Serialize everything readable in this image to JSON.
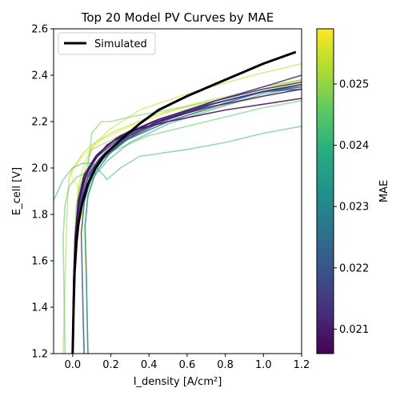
{
  "chart_data": {
    "type": "line",
    "title": "Top 20 Model PV Curves by MAE",
    "xlabel": "I_density [A/cm²]",
    "ylabel": "E_cell [V]",
    "xlim": [
      -0.1,
      1.2
    ],
    "ylim": [
      1.2,
      2.6
    ],
    "x_ticks": [
      "0.0",
      "0.2",
      "0.4",
      "0.6",
      "0.8",
      "1.0",
      "1.2"
    ],
    "y_ticks": [
      "1.2",
      "1.4",
      "1.6",
      "1.8",
      "2.0",
      "2.2",
      "2.4",
      "2.6"
    ],
    "grid": false,
    "legend_location": "upper left",
    "legend": [
      "Simulated"
    ],
    "colorbar": {
      "label": "MAE",
      "colormap": "viridis",
      "range": [
        0.0206,
        0.0259
      ],
      "ticks": [
        "0.021",
        "0.022",
        "0.023",
        "0.024",
        "0.025"
      ]
    },
    "simulated": {
      "name": "Simulated",
      "color": "#000000",
      "x": [
        0.0,
        0.005,
        0.01,
        0.02,
        0.03,
        0.05,
        0.08,
        0.12,
        0.17,
        0.25,
        0.35,
        0.45,
        0.6,
        0.8,
        1.0,
        1.17
      ],
      "y": [
        1.2,
        1.4,
        1.55,
        1.68,
        1.76,
        1.85,
        1.93,
        2.0,
        2.06,
        2.12,
        2.19,
        2.25,
        2.31,
        2.38,
        2.45,
        2.5
      ]
    },
    "model_curves": [
      {
        "mae": 0.0207,
        "x": [
          0.0,
          0.005,
          0.015,
          0.03,
          0.06,
          0.1,
          0.18,
          0.3,
          0.5,
          0.8,
          1.2
        ],
        "y": [
          1.2,
          1.5,
          1.7,
          1.85,
          1.95,
          2.02,
          2.1,
          2.16,
          2.2,
          2.25,
          2.3
        ]
      },
      {
        "mae": 0.0209,
        "x": [
          0.0,
          0.004,
          0.012,
          0.03,
          0.06,
          0.12,
          0.22,
          0.4,
          0.7,
          1.0,
          1.2
        ],
        "y": [
          1.2,
          1.5,
          1.7,
          1.86,
          1.97,
          2.05,
          2.12,
          2.19,
          2.26,
          2.31,
          2.34
        ]
      },
      {
        "mae": 0.0211,
        "x": [
          0.0,
          0.005,
          0.014,
          0.03,
          0.07,
          0.13,
          0.25,
          0.45,
          0.75,
          1.0,
          1.2
        ],
        "y": [
          1.2,
          1.5,
          1.7,
          1.85,
          1.97,
          2.05,
          2.13,
          2.21,
          2.29,
          2.34,
          2.37
        ]
      },
      {
        "mae": 0.0213,
        "x": [
          0.0,
          0.006,
          0.016,
          0.035,
          0.07,
          0.14,
          0.25,
          0.45,
          0.75,
          1.0,
          1.2
        ],
        "y": [
          1.2,
          1.5,
          1.7,
          1.85,
          1.96,
          2.04,
          2.12,
          2.2,
          2.29,
          2.35,
          2.4
        ]
      },
      {
        "mae": 0.0215,
        "x": [
          0.0,
          0.005,
          0.015,
          0.03,
          0.06,
          0.12,
          0.23,
          0.42,
          0.7,
          1.0,
          1.2
        ],
        "y": [
          1.2,
          1.5,
          1.7,
          1.86,
          1.97,
          2.05,
          2.13,
          2.2,
          2.27,
          2.33,
          2.36
        ]
      },
      {
        "mae": 0.0217,
        "x": [
          0.0,
          0.007,
          0.018,
          0.04,
          0.08,
          0.15,
          0.27,
          0.47,
          0.75,
          1.0,
          1.2
        ],
        "y": [
          1.2,
          1.5,
          1.7,
          1.85,
          1.96,
          2.04,
          2.12,
          2.2,
          2.28,
          2.33,
          2.36
        ]
      },
      {
        "mae": 0.0219,
        "x": [
          0.0,
          0.005,
          0.015,
          0.035,
          0.07,
          0.13,
          0.25,
          0.45,
          0.75,
          1.0,
          1.2
        ],
        "y": [
          1.2,
          1.5,
          1.7,
          1.86,
          1.98,
          2.06,
          2.14,
          2.21,
          2.28,
          2.33,
          2.35
        ]
      },
      {
        "mae": 0.0221,
        "x": [
          0.06,
          0.055,
          0.05,
          0.045,
          0.06,
          0.1,
          0.18,
          0.3,
          0.5,
          0.8,
          1.0,
          1.2
        ],
        "y": [
          1.2,
          1.35,
          1.55,
          1.72,
          1.85,
          1.98,
          2.07,
          2.14,
          2.22,
          2.29,
          2.33,
          2.36
        ]
      },
      {
        "mae": 0.0223,
        "x": [
          0.0,
          0.006,
          0.017,
          0.04,
          0.08,
          0.15,
          0.26,
          0.45,
          0.75,
          1.0,
          1.2
        ],
        "y": [
          1.2,
          1.5,
          1.7,
          1.85,
          1.96,
          2.05,
          2.13,
          2.2,
          2.28,
          2.33,
          2.34
        ]
      },
      {
        "mae": 0.0226,
        "x": [
          0.0,
          0.006,
          0.02,
          0.045,
          0.09,
          0.16,
          0.28,
          0.5,
          0.8,
          1.0,
          1.2
        ],
        "y": [
          1.2,
          1.5,
          1.72,
          1.85,
          1.96,
          2.04,
          2.12,
          2.2,
          2.28,
          2.33,
          2.36
        ]
      },
      {
        "mae": 0.0232,
        "x": [
          0.08,
          0.075,
          0.07,
          0.065,
          0.08,
          0.12,
          0.2,
          0.35,
          0.6,
          0.9,
          1.2
        ],
        "y": [
          1.2,
          1.4,
          1.6,
          1.75,
          1.88,
          1.98,
          2.07,
          2.16,
          2.25,
          2.31,
          2.36
        ]
      },
      {
        "mae": 0.0238,
        "x": [
          0.0,
          0.006,
          0.02,
          0.05,
          0.1,
          0.18,
          0.3,
          0.5,
          0.8,
          1.0,
          1.2
        ],
        "y": [
          1.2,
          1.5,
          1.7,
          1.84,
          1.95,
          2.03,
          2.11,
          2.19,
          2.27,
          2.32,
          2.35
        ]
      },
      {
        "mae": 0.0242,
        "x": [
          -0.1,
          -0.05,
          0.0,
          0.05,
          0.1,
          0.15,
          0.18,
          0.25,
          0.35,
          0.6,
          0.8,
          1.0,
          1.2
        ],
        "y": [
          1.86,
          1.95,
          2.0,
          2.02,
          2.02,
          1.98,
          1.95,
          2.0,
          2.05,
          2.08,
          2.11,
          2.15,
          2.18
        ]
      },
      {
        "mae": 0.0245,
        "x": [
          -0.04,
          -0.045,
          -0.05,
          -0.04,
          -0.02,
          0.02,
          0.07,
          0.12,
          0.2,
          0.4,
          0.7,
          1.0,
          1.2
        ],
        "y": [
          1.2,
          1.45,
          1.7,
          1.84,
          1.92,
          1.96,
          1.98,
          2.02,
          2.07,
          2.14,
          2.2,
          2.26,
          2.29
        ]
      },
      {
        "mae": 0.0248,
        "x": [
          0.0,
          0.004,
          0.012,
          0.02,
          0.05,
          0.08,
          0.1,
          0.15,
          0.2,
          0.3,
          0.5,
          0.8,
          1.0,
          1.2
        ],
        "y": [
          1.2,
          1.5,
          1.7,
          1.85,
          1.95,
          2.0,
          2.15,
          2.2,
          2.2,
          2.22,
          2.25,
          2.3,
          2.35,
          2.38
        ]
      },
      {
        "mae": 0.025,
        "x": [
          0.0,
          0.005,
          0.015,
          0.03,
          0.06,
          0.1,
          0.15,
          0.2,
          0.3,
          0.5,
          0.7,
          1.0,
          1.2
        ],
        "y": [
          1.2,
          1.5,
          1.75,
          1.9,
          1.98,
          2.08,
          2.1,
          2.12,
          2.16,
          2.2,
          2.25,
          2.31,
          2.36
        ]
      },
      {
        "mae": 0.0252,
        "x": [
          -0.05,
          -0.04,
          -0.03,
          -0.02,
          0.0,
          0.02,
          0.05,
          0.1,
          0.2,
          0.4,
          0.7,
          1.0,
          1.2
        ],
        "y": [
          1.2,
          1.5,
          1.8,
          1.95,
          2.0,
          2.02,
          2.06,
          2.1,
          2.15,
          2.22,
          2.29,
          2.34,
          2.38
        ]
      },
      {
        "mae": 0.0254,
        "x": [
          0.0,
          0.005,
          0.015,
          0.03,
          0.06,
          0.11,
          0.2,
          0.35,
          0.6,
          0.9,
          1.2
        ],
        "y": [
          1.2,
          1.5,
          1.75,
          1.92,
          2.02,
          2.1,
          2.17,
          2.25,
          2.32,
          2.39,
          2.45
        ]
      },
      {
        "mae": 0.0256,
        "x": [
          0.0,
          0.008,
          0.02,
          0.045,
          0.09,
          0.16,
          0.28,
          0.48,
          0.75,
          1.0,
          1.2
        ],
        "y": [
          1.2,
          1.5,
          1.72,
          1.86,
          1.97,
          2.05,
          2.13,
          2.21,
          2.28,
          2.33,
          2.37
        ]
      },
      {
        "mae": 0.0259,
        "x": [
          0.08,
          0.075,
          0.07,
          0.06,
          0.05,
          0.04,
          0.02,
          0.0,
          -0.01,
          0.01,
          0.05,
          0.15,
          0.3,
          0.5,
          0.8,
          1.0,
          1.2
        ],
        "y": [
          1.2,
          1.4,
          1.55,
          1.7,
          1.8,
          1.88,
          1.93,
          1.96,
          1.97,
          2.0,
          2.05,
          2.12,
          2.18,
          2.24,
          2.3,
          2.35,
          2.38
        ]
      }
    ]
  }
}
